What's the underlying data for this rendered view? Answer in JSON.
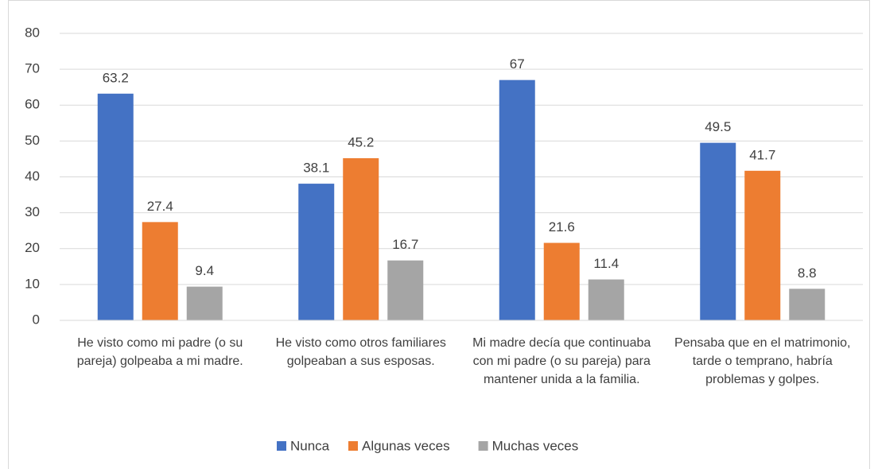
{
  "chart_data": {
    "type": "bar",
    "categories": [
      "He visto como mi padre (o su pareja) golpeaba a mi madre.",
      "He visto como otros familiares golpeaban a sus esposas.",
      "Mi madre decía que continuaba con mi padre (o su pareja) para mantener unida a la familia.",
      "Pensaba que en el matrimonio, tarde o temprano, habría problemas y golpes."
    ],
    "series": [
      {
        "name": "Nunca",
        "color": "#4472c4",
        "values": [
          63.2,
          38.1,
          67,
          49.5
        ]
      },
      {
        "name": "Algunas veces",
        "color": "#ed7d31",
        "values": [
          27.4,
          45.2,
          21.6,
          41.7
        ]
      },
      {
        "name": "Muchas veces",
        "color": "#a5a5a5",
        "values": [
          9.4,
          16.7,
          11.4,
          8.8
        ]
      }
    ],
    "ylim": [
      0,
      80
    ],
    "yticks": [
      0,
      10,
      20,
      30,
      40,
      50,
      60,
      70,
      80
    ],
    "grid": true,
    "legend": "bottom"
  }
}
